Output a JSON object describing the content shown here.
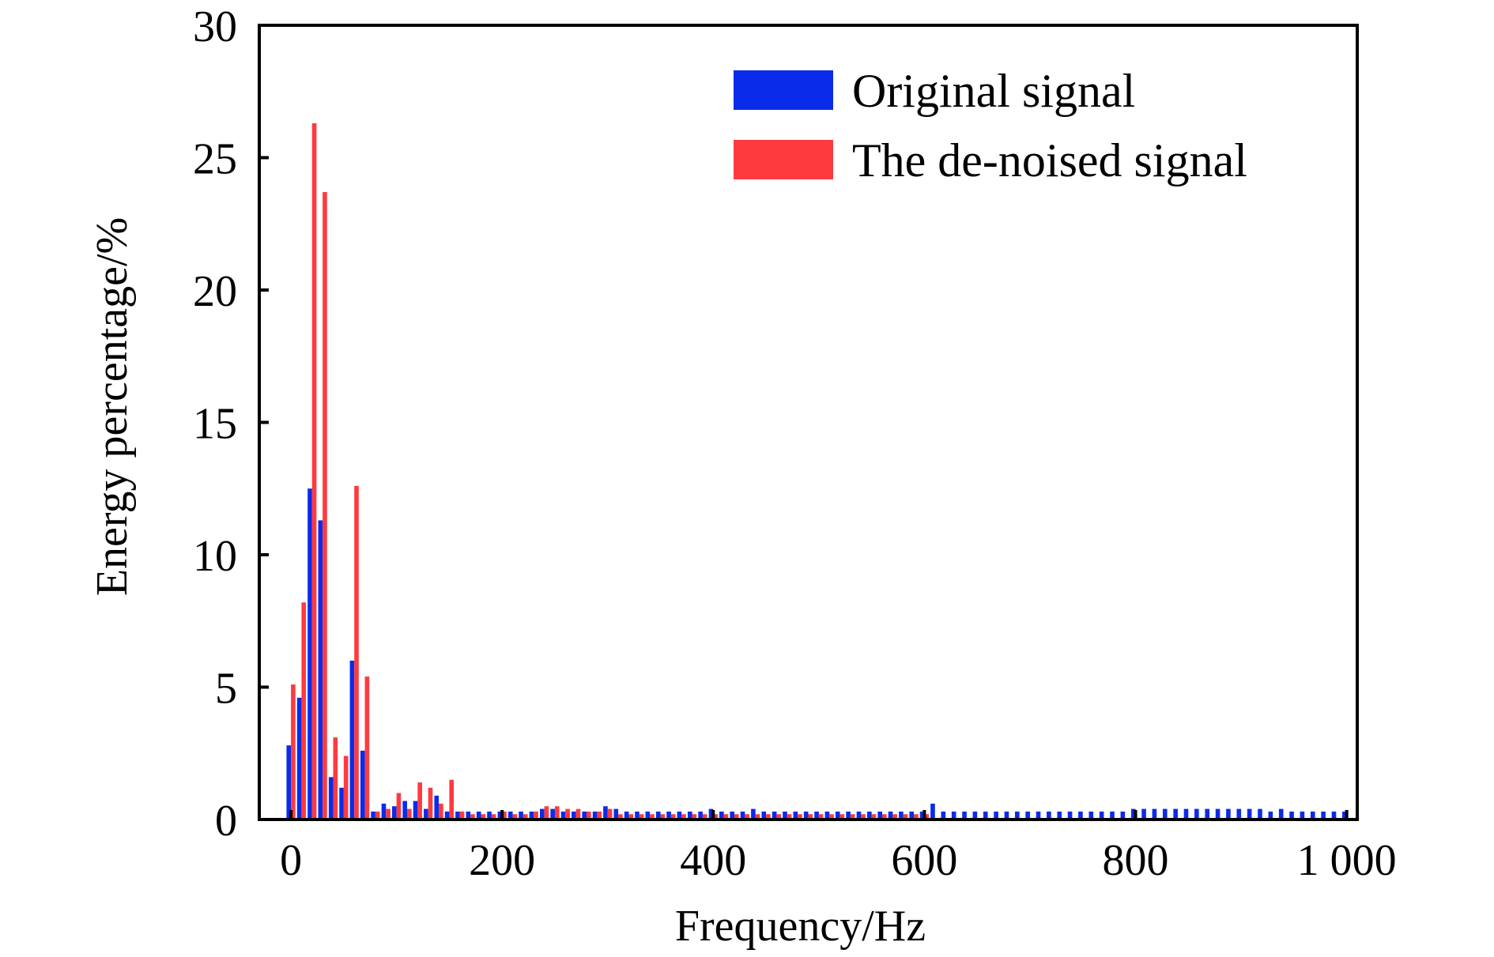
{
  "chart_data": {
    "type": "bar",
    "xlabel": "Frequency/Hz",
    "ylabel": "Energy percentage/%",
    "xlim": [
      -30,
      1010
    ],
    "ylim": [
      0,
      30
    ],
    "x_ticks": [
      0,
      200,
      400,
      600,
      800,
      1000
    ],
    "x_tick_labels": [
      "0",
      "200",
      "400",
      "600",
      "800",
      "1 000"
    ],
    "y_ticks": [
      0,
      5,
      10,
      15,
      20,
      25,
      30
    ],
    "y_tick_labels": [
      "0",
      "5",
      "10",
      "15",
      "20",
      "25",
      "30"
    ],
    "bin_width": 10,
    "grid": false,
    "legend_position": "top-right",
    "series": [
      {
        "name": "Original signal",
        "color": "#0a2bea",
        "x": [
          0,
          10,
          20,
          30,
          40,
          50,
          60,
          70,
          80,
          90,
          100,
          110,
          120,
          130,
          140,
          150,
          160,
          170,
          180,
          190,
          200,
          210,
          220,
          230,
          240,
          250,
          260,
          270,
          280,
          290,
          300,
          310,
          320,
          330,
          340,
          350,
          360,
          370,
          380,
          390,
          400,
          410,
          420,
          430,
          440,
          450,
          460,
          470,
          480,
          490,
          500,
          510,
          520,
          530,
          540,
          550,
          560,
          570,
          580,
          590,
          600,
          610,
          620,
          630,
          640,
          650,
          660,
          670,
          680,
          690,
          700,
          710,
          720,
          730,
          740,
          750,
          760,
          770,
          780,
          790,
          800,
          810,
          820,
          830,
          840,
          850,
          860,
          870,
          880,
          890,
          900,
          910,
          920,
          930,
          940,
          950,
          960,
          970,
          980,
          990,
          1000
        ],
        "values": [
          2.8,
          4.6,
          12.5,
          11.3,
          1.6,
          1.2,
          6.0,
          2.6,
          0.3,
          0.6,
          0.5,
          0.7,
          0.7,
          0.4,
          0.9,
          0.3,
          0.3,
          0.3,
          0.3,
          0.3,
          0.3,
          0.3,
          0.3,
          0.3,
          0.4,
          0.4,
          0.3,
          0.3,
          0.3,
          0.3,
          0.5,
          0.4,
          0.3,
          0.3,
          0.3,
          0.3,
          0.3,
          0.3,
          0.3,
          0.3,
          0.4,
          0.3,
          0.3,
          0.3,
          0.4,
          0.3,
          0.3,
          0.3,
          0.3,
          0.3,
          0.3,
          0.3,
          0.3,
          0.3,
          0.3,
          0.3,
          0.3,
          0.3,
          0.3,
          0.3,
          0.3,
          0.6,
          0.3,
          0.3,
          0.3,
          0.3,
          0.3,
          0.3,
          0.3,
          0.3,
          0.3,
          0.3,
          0.3,
          0.3,
          0.3,
          0.3,
          0.3,
          0.3,
          0.3,
          0.3,
          0.4,
          0.4,
          0.4,
          0.4,
          0.4,
          0.4,
          0.4,
          0.4,
          0.4,
          0.4,
          0.4,
          0.4,
          0.4,
          0.3,
          0.4,
          0.3,
          0.3,
          0.3,
          0.3,
          0.3,
          0.3
        ]
      },
      {
        "name": "The de-noised signal",
        "color": "#ff3a3f",
        "x": [
          0,
          10,
          20,
          30,
          40,
          50,
          60,
          70,
          80,
          90,
          100,
          110,
          120,
          130,
          140,
          150,
          160,
          170,
          180,
          190,
          200,
          210,
          220,
          230,
          240,
          250,
          260,
          270,
          280,
          290,
          300,
          310,
          320,
          330,
          340,
          350,
          360,
          370,
          380,
          390,
          400,
          410,
          420,
          430,
          440,
          450,
          460,
          470,
          480,
          490,
          500,
          510,
          520,
          530,
          540,
          550,
          560,
          570,
          580,
          590,
          600
        ],
        "values": [
          5.1,
          8.2,
          26.3,
          23.7,
          3.1,
          2.4,
          12.6,
          5.4,
          0.3,
          0.4,
          1.0,
          0.4,
          1.4,
          1.2,
          0.6,
          1.5,
          0.3,
          0.2,
          0.2,
          0.2,
          0.3,
          0.2,
          0.2,
          0.3,
          0.5,
          0.5,
          0.4,
          0.4,
          0.3,
          0.3,
          0.4,
          0.2,
          0.2,
          0.2,
          0.2,
          0.2,
          0.2,
          0.2,
          0.2,
          0.2,
          0.2,
          0.2,
          0.2,
          0.2,
          0.2,
          0.2,
          0.2,
          0.2,
          0.2,
          0.2,
          0.2,
          0.2,
          0.2,
          0.2,
          0.2,
          0.2,
          0.2,
          0.2,
          0.2,
          0.2,
          0.2
        ]
      }
    ]
  }
}
